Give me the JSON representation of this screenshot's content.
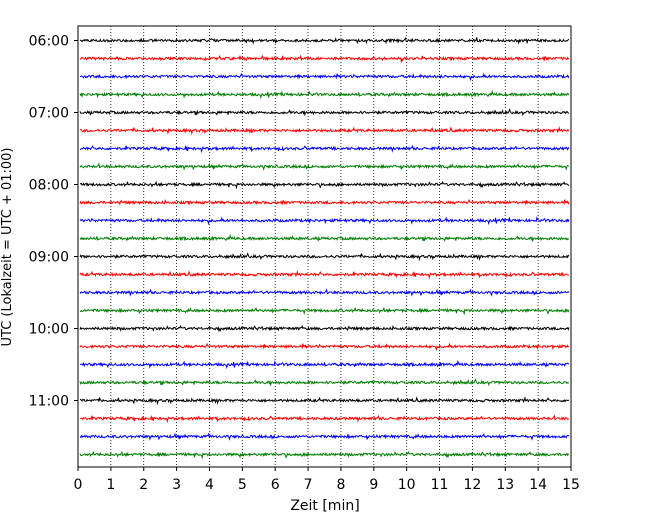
{
  "chart_data": {
    "type": "line",
    "xlabel": "Zeit  [min]",
    "ylabel": "UTC (Lokalzeit = UTC + 01:00)",
    "xlim": [
      0,
      15
    ],
    "x_ticks": [
      "0",
      "1",
      "2",
      "3",
      "4",
      "5",
      "6",
      "7",
      "8",
      "9",
      "10",
      "11",
      "12",
      "13",
      "14",
      "15"
    ],
    "y_ticks": [
      "06:00",
      "07:00",
      "08:00",
      "09:00",
      "10:00",
      "11:00"
    ],
    "grid": "vertical dotted lines at each minute",
    "trace_colors": [
      "#000000",
      "#ff0000",
      "#0000ff",
      "#008000"
    ],
    "traces": [
      {
        "start": "06:00",
        "color": "#000000"
      },
      {
        "start": "06:15",
        "color": "#ff0000"
      },
      {
        "start": "06:30",
        "color": "#0000ff"
      },
      {
        "start": "06:45",
        "color": "#008000"
      },
      {
        "start": "07:00",
        "color": "#000000"
      },
      {
        "start": "07:15",
        "color": "#ff0000"
      },
      {
        "start": "07:30",
        "color": "#0000ff"
      },
      {
        "start": "07:45",
        "color": "#008000"
      },
      {
        "start": "08:00",
        "color": "#000000"
      },
      {
        "start": "08:15",
        "color": "#ff0000"
      },
      {
        "start": "08:30",
        "color": "#0000ff"
      },
      {
        "start": "08:45",
        "color": "#008000"
      },
      {
        "start": "09:00",
        "color": "#000000"
      },
      {
        "start": "09:15",
        "color": "#ff0000"
      },
      {
        "start": "09:30",
        "color": "#0000ff"
      },
      {
        "start": "09:45",
        "color": "#008000"
      },
      {
        "start": "10:00",
        "color": "#000000"
      },
      {
        "start": "10:15",
        "color": "#ff0000"
      },
      {
        "start": "10:30",
        "color": "#0000ff"
      },
      {
        "start": "10:45",
        "color": "#008000"
      },
      {
        "start": "11:00",
        "color": "#000000"
      },
      {
        "start": "11:15",
        "color": "#ff0000"
      },
      {
        "start": "11:30",
        "color": "#0000ff"
      },
      {
        "start": "11:45",
        "color": "#008000"
      }
    ]
  }
}
